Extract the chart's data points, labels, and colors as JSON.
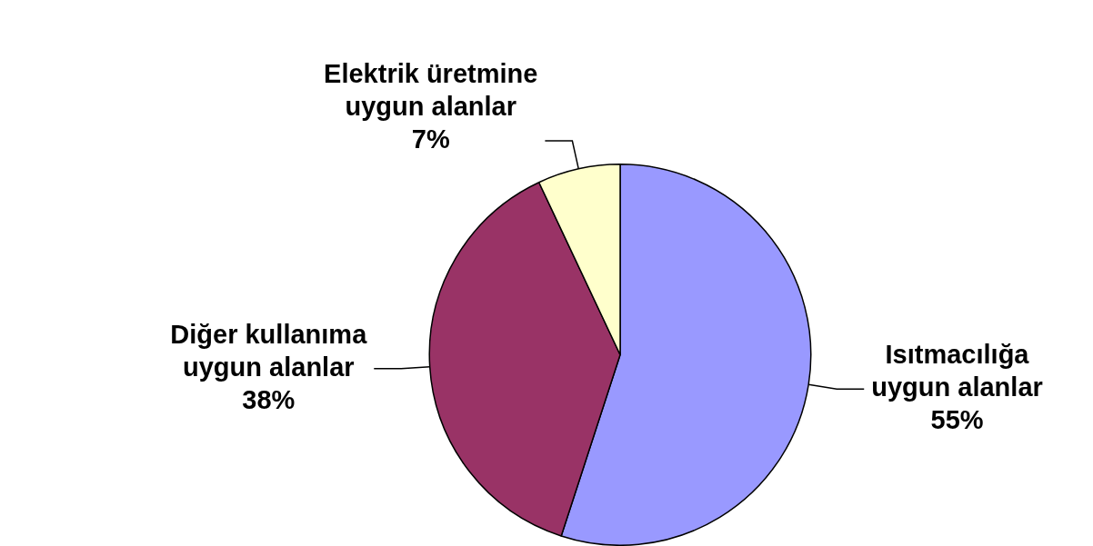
{
  "chart_data": {
    "type": "pie",
    "categories": [
      "Isıtmacılığa uygun alanlar",
      "Diğer kullanıma uygun alanlar",
      "Elektrik üretmine uygun alanlar"
    ],
    "values": [
      55,
      38,
      7
    ],
    "colors": [
      "#9999ff",
      "#993366",
      "#ffffcc"
    ],
    "value_labels": [
      "55%",
      "38%",
      "7%"
    ],
    "legend": false
  }
}
